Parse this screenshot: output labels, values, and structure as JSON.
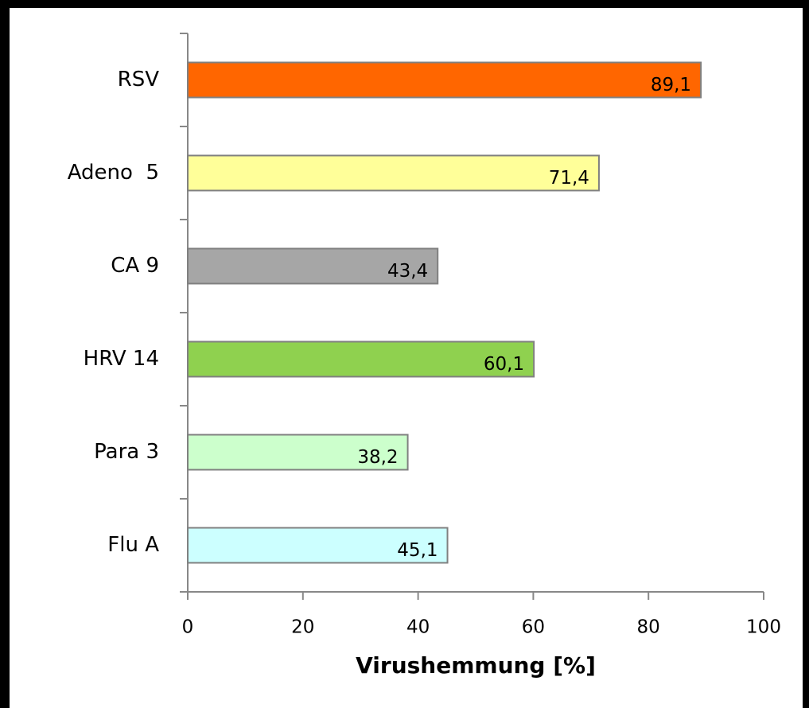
{
  "chart_data": {
    "type": "bar",
    "orientation": "horizontal",
    "x_label": "Virushemmung [%]",
    "categories": [
      "RSV",
      "Adeno  5",
      "CA 9",
      "HRV 14",
      "Para 3",
      "Flu A"
    ],
    "values": [
      89.1,
      71.4,
      43.4,
      60.1,
      38.2,
      45.1
    ],
    "value_labels": [
      "89,1",
      "71,4",
      "43,4",
      "60,1",
      "38,2",
      "45,1"
    ],
    "colors": [
      "#ff6600",
      "#ffff99",
      "#a6a6a6",
      "#8fd14f",
      "#ccffcc",
      "#ccffff"
    ],
    "xlim": [
      0,
      100
    ],
    "xticks": [
      0,
      20,
      40,
      60,
      80,
      100
    ]
  }
}
